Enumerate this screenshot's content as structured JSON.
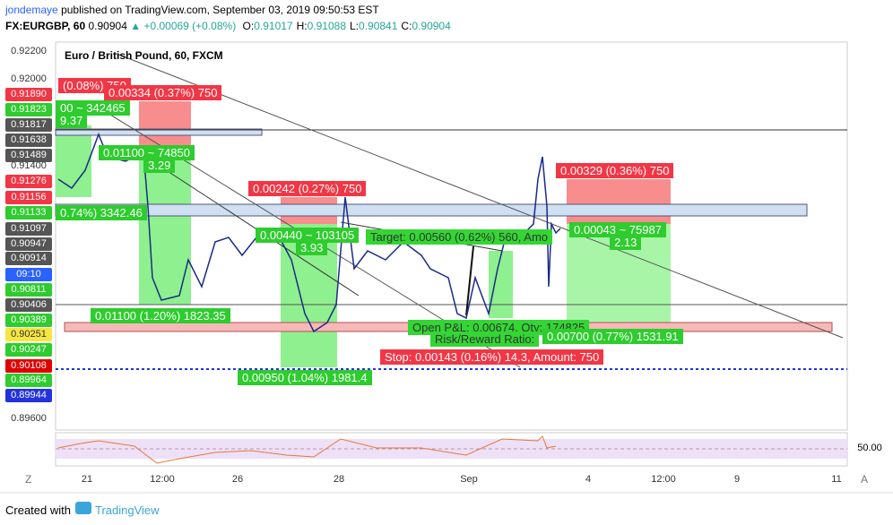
{
  "header": {
    "author": "jondemaye",
    "published": "published on TradingView.com, September 03, 2019 09:50:53 EST",
    "symbol": "FX:EURGBP, 60",
    "price": "0.90904",
    "change": "+0.00069 (+0.08%)",
    "ohlc": [
      {
        "label": "O:",
        "value": "0.91017"
      },
      {
        "label": "H:",
        "value": "0.91088"
      },
      {
        "label": "L:",
        "value": "0.90841"
      },
      {
        "label": "C:",
        "value": "0.90904"
      }
    ]
  },
  "chart": {
    "title": "Euro / British Pound, 60, FXCM",
    "price_labels": [
      "0.92200",
      "0.92000",
      "0.91890",
      "0.91823",
      "0.91817",
      "0.91638",
      "0.91489",
      "0.91400",
      "0.91276",
      "0.91156",
      "0.91133",
      "0.91097",
      "0.90947",
      "0.90914",
      "09:10",
      "0.90811",
      "0.90406",
      "0.90389",
      "0.90251",
      "0.90247",
      "0.90108",
      "0.89964",
      "0.89944",
      "0.89600"
    ],
    "annotations": [
      "(0.08%) 750",
      "0.00334 (0.37%) 750",
      "00 ~ 342465",
      "9.37",
      "0.01100 ~ 74850",
      "3.29",
      "0.74%) 3342.46",
      "0.00242 (0.27%) 750",
      "0.00440 ~ 103105",
      "3.93",
      "Target: 0.00560 (0.62%) 560, Amo",
      "0.00329 (0.36%) 750",
      "0.00043 ~ 75987",
      "2.13",
      "0.01100 (1.20%) 1823.35",
      "Open P&L: 0.00674, Qty: 174825",
      "Risk/Reward Ratio:",
      "0.00700 (0.77%) 1531.91",
      "Stop: 0.00143 (0.16%) 14.3, Amount: 750",
      "0.00950 (1.04%) 1981.4"
    ],
    "rsi_label": "50.00",
    "time_labels": [
      "21",
      "12:00",
      "26",
      "28",
      "Sep",
      "4",
      "12:00",
      "9",
      "11"
    ],
    "corner_left": "Z",
    "corner_right": "A"
  },
  "footer": {
    "created": "Created with",
    "brand": "TradingView"
  }
}
